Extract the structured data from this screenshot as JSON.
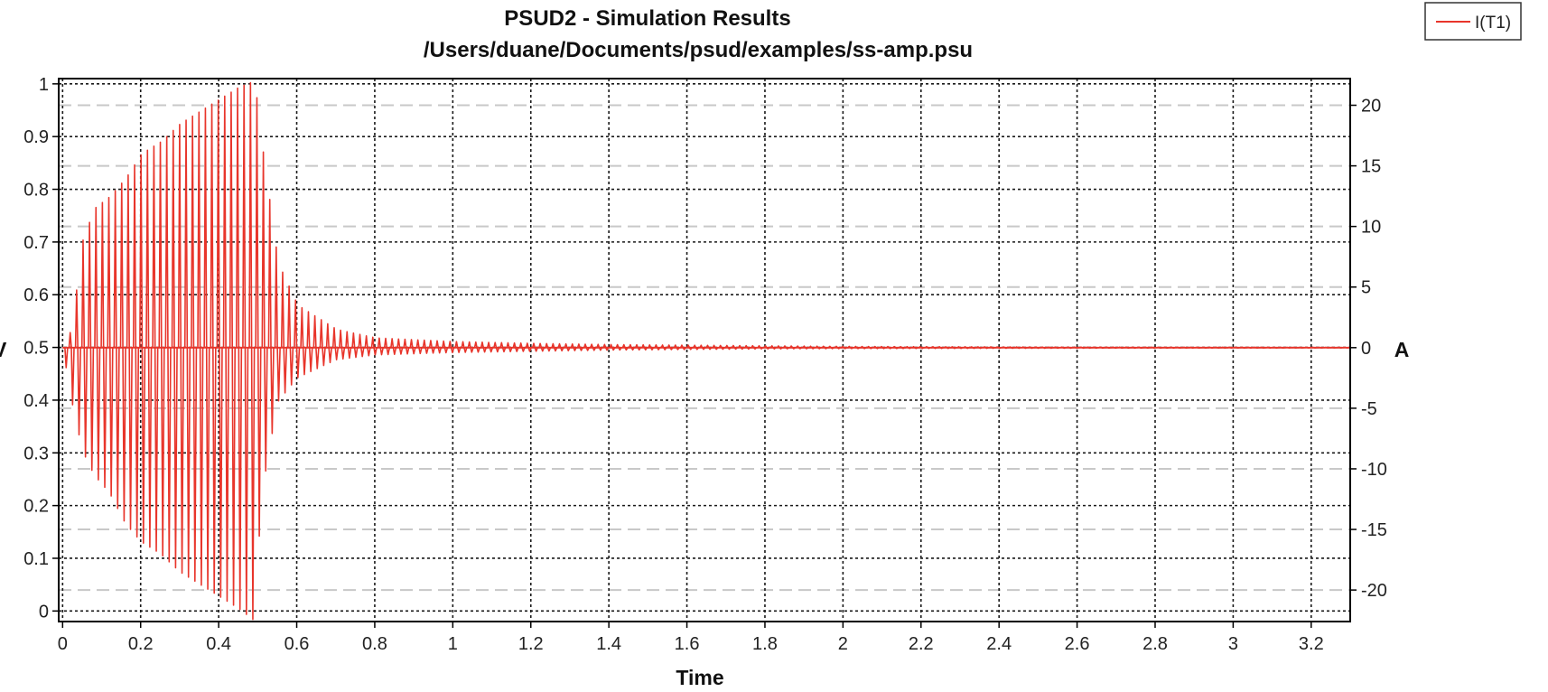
{
  "colors": {
    "series": "#e8352b",
    "grid_major": "#1a1a1a",
    "grid_minor": "#c8c8c8",
    "frame": "#000000"
  },
  "chart_data": {
    "type": "line",
    "title": "PSUD2 - Simulation Results",
    "subtitle": "/Users/duane/Documents/psud/examples/ss-amp.psu",
    "xlabel": "Time",
    "ylabel_left": "V",
    "ylabel_right": "A",
    "xlim": [
      -0.01,
      3.3
    ],
    "ylim_left": [
      -0.02,
      1.01
    ],
    "ylim_right": [
      -22.6,
      22.2
    ],
    "x_ticks": [
      "0",
      "0.2",
      "0.4",
      "0.6",
      "0.8",
      "1",
      "1.2",
      "1.4",
      "1.6",
      "1.8",
      "2",
      "2.2",
      "2.4",
      "2.6",
      "2.8",
      "3",
      "3.2"
    ],
    "x_tick_values": [
      0,
      0.2,
      0.4,
      0.6,
      0.8,
      1,
      1.2,
      1.4,
      1.6,
      1.8,
      2,
      2.2,
      2.4,
      2.6,
      2.8,
      3,
      3.2
    ],
    "y_left_ticks": [
      "0",
      "0.1",
      "0.2",
      "0.3",
      "0.4",
      "0.5",
      "0.6",
      "0.7",
      "0.8",
      "0.9",
      "1"
    ],
    "y_left_tick_values": [
      0,
      0.1,
      0.2,
      0.3,
      0.4,
      0.5,
      0.6,
      0.7,
      0.8,
      0.9,
      1
    ],
    "y_right_ticks": [
      "-20",
      "-15",
      "-10",
      "-5",
      "0",
      "5",
      "10",
      "15",
      "20"
    ],
    "y_right_tick_values": [
      -20,
      -15,
      -10,
      -5,
      0,
      5,
      10,
      15,
      20
    ],
    "grid": true,
    "legend": {
      "position": "top-right",
      "entries": [
        "I(T1)"
      ]
    },
    "series": [
      {
        "name": "I(T1)",
        "axis": "right",
        "description_points": {
          "x": [
            0.0,
            0.02,
            0.05,
            0.08,
            0.12,
            0.16,
            0.2,
            0.25,
            0.3,
            0.35,
            0.4,
            0.45,
            0.49,
            0.51,
            0.55,
            0.6,
            0.7,
            0.8,
            1.0,
            1.2,
            1.4,
            1.6,
            1.8,
            2.0,
            2.5,
            3.0,
            3.3
          ],
          "peak": [
            0.0,
            1.5,
            9.0,
            11.5,
            12.5,
            14.0,
            16.0,
            17.0,
            18.5,
            19.5,
            20.5,
            21.5,
            22.0,
            16.5,
            7.0,
            3.5,
            1.5,
            0.8,
            0.5,
            0.35,
            0.25,
            0.2,
            0.15,
            0.1,
            0.05,
            0.03,
            0.02
          ],
          "trough": [
            0.0,
            -4.0,
            -8.5,
            -10.5,
            -12.0,
            -14.5,
            -16.0,
            -17.0,
            -18.5,
            -19.5,
            -20.5,
            -21.5,
            -22.5,
            -12.0,
            -4.5,
            -2.5,
            -1.0,
            -0.6,
            -0.4,
            -0.3,
            -0.2,
            -0.15,
            -0.1,
            -0.08,
            -0.05,
            -0.03,
            -0.02
          ]
        }
      }
    ]
  }
}
